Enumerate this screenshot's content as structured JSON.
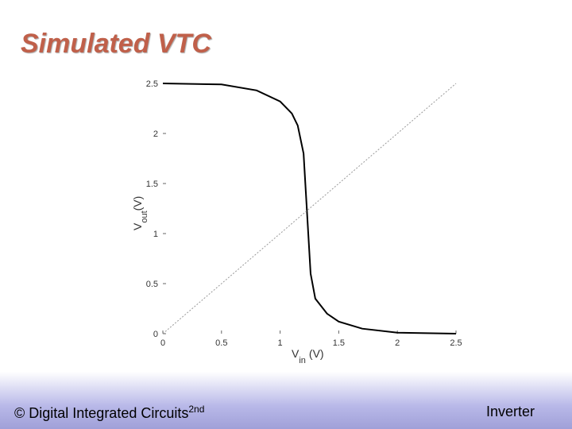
{
  "slide": {
    "title": "Simulated VTC",
    "footer_left": "© Digital Integrated Circuits",
    "footer_sup": "2nd",
    "footer_right": "Inverter"
  },
  "chart_data": {
    "type": "line",
    "x_label": {
      "main": "V",
      "sub": "in",
      "unit": "(V)"
    },
    "y_label": {
      "main": "V",
      "sub": "out",
      "unit": "(V)"
    },
    "xlim": [
      0,
      2.5
    ],
    "ylim": [
      0,
      2.5
    ],
    "xticks": [
      0,
      0.5,
      1,
      1.5,
      2,
      2.5
    ],
    "yticks": [
      0,
      0.5,
      1,
      1.5,
      2,
      2.5
    ],
    "series": [
      {
        "color": "#000000",
        "style": "solid",
        "x": [
          0,
          0.5,
          0.8,
          1.0,
          1.1,
          1.15,
          1.2,
          1.22,
          1.24,
          1.26,
          1.3,
          1.4,
          1.5,
          1.7,
          2.0,
          2.5
        ],
        "values": [
          2.5,
          2.49,
          2.43,
          2.32,
          2.2,
          2.08,
          1.8,
          1.4,
          1.0,
          0.6,
          0.35,
          0.2,
          0.12,
          0.05,
          0.01,
          0
        ]
      },
      {
        "color": "#999999",
        "style": "dotted",
        "x": [
          0,
          2.5
        ],
        "values": [
          0,
          2.5
        ]
      }
    ]
  }
}
